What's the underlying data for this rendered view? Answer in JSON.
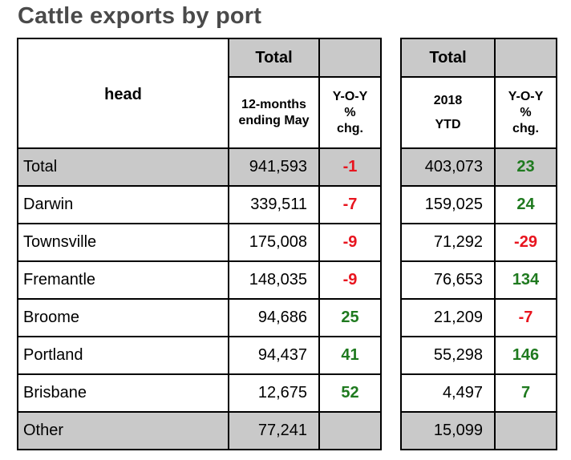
{
  "title": "Cattle exports by port",
  "left_table": {
    "head_label": "head",
    "group_header": "Total",
    "col1_line1": "12-months",
    "col1_line2": "ending May",
    "col2_line1": "Y-O-Y",
    "col2_line2": "%",
    "col2_line3": "chg."
  },
  "right_table": {
    "group_header": "Total",
    "col1_line1": "2018",
    "col1_line2": "YTD",
    "col2_line1": "Y-O-Y",
    "col2_line2": "%",
    "col2_line3": "chg."
  },
  "rows": [
    {
      "port": "Total",
      "twelve_months": "941,593",
      "yoy_12m": "-1",
      "ytd": "403,073",
      "yoy_ytd": "23"
    },
    {
      "port": "Darwin",
      "twelve_months": "339,511",
      "yoy_12m": "-7",
      "ytd": "159,025",
      "yoy_ytd": "24"
    },
    {
      "port": "Townsville",
      "twelve_months": "175,008",
      "yoy_12m": "-9",
      "ytd": "71,292",
      "yoy_ytd": "-29"
    },
    {
      "port": "Fremantle",
      "twelve_months": "148,035",
      "yoy_12m": "-9",
      "ytd": "76,653",
      "yoy_ytd": "134"
    },
    {
      "port": "Broome",
      "twelve_months": "94,686",
      "yoy_12m": "25",
      "ytd": "21,209",
      "yoy_ytd": "-7"
    },
    {
      "port": "Portland",
      "twelve_months": "94,437",
      "yoy_12m": "41",
      "ytd": "55,298",
      "yoy_ytd": "146"
    },
    {
      "port": "Brisbane",
      "twelve_months": "12,675",
      "yoy_12m": "52",
      "ytd": "4,497",
      "yoy_ytd": "7"
    },
    {
      "port": "Other",
      "twelve_months": "77,241",
      "yoy_12m": "",
      "ytd": "15,099",
      "yoy_ytd": ""
    }
  ],
  "colors": {
    "negative": "#e8141e",
    "positive": "#1f7a1f",
    "header_fill": "#c9c9c9",
    "title": "#4a4a4a"
  }
}
